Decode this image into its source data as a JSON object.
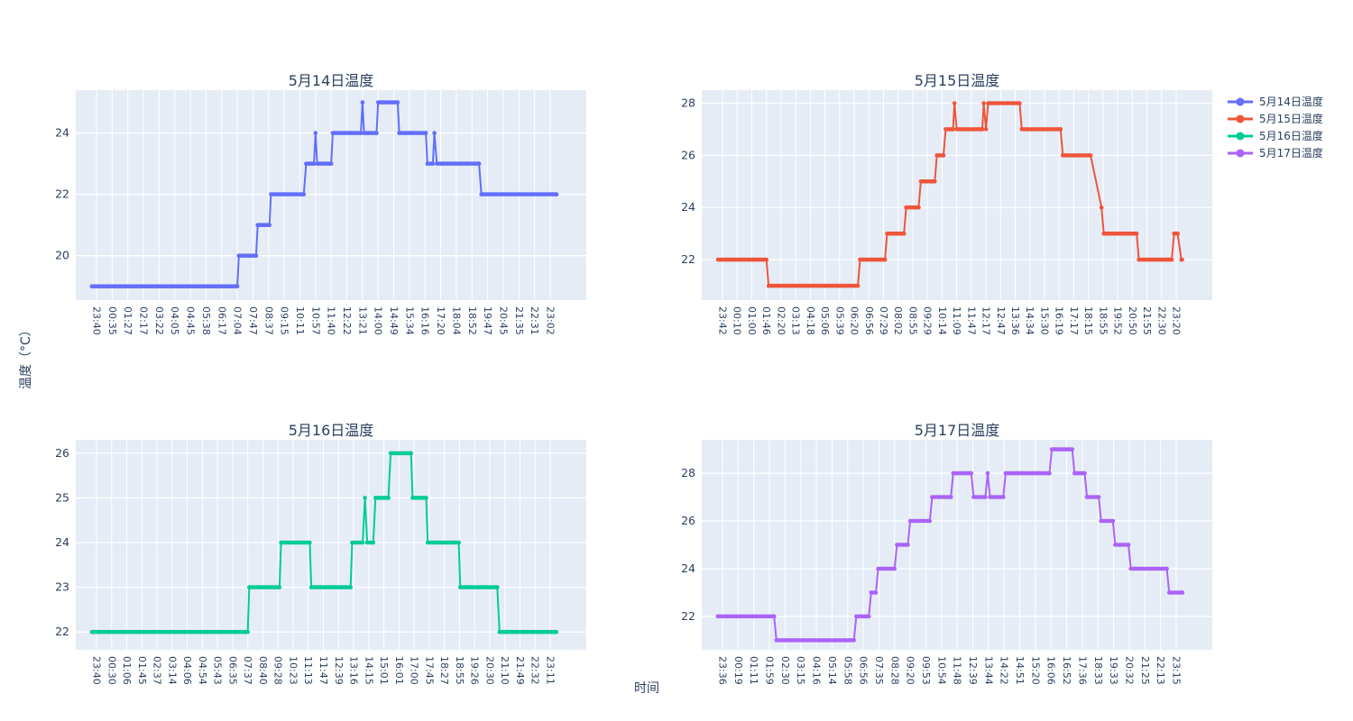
{
  "figure": {
    "y_axis_label": "温度（°C）",
    "x_axis_label": "时间",
    "background": "#ffffff",
    "plot_background": "#E5ECF6",
    "grid_color": "#ffffff",
    "text_color": "#2a3f5f"
  },
  "legend": {
    "position": "top-right",
    "items": [
      {
        "label": "5月14日温度",
        "color": "#636EFA"
      },
      {
        "label": "5月15日温度",
        "color": "#EF553B"
      },
      {
        "label": "5月16日温度",
        "color": "#00CC96"
      },
      {
        "label": "5月17日温度",
        "color": "#AB63FA"
      }
    ]
  },
  "chart_data": [
    {
      "type": "line",
      "mode": "lines+markers",
      "title": "5月14日温度",
      "series_name": "5月14日温度",
      "color": "#636EFA",
      "x_unit": "HH:MM",
      "y_unit": "°C",
      "x_tick_labels": [
        "23:40",
        "00:35",
        "01:27",
        "02:17",
        "03:22",
        "04:05",
        "04:45",
        "05:38",
        "06:17",
        "07:04",
        "07:47",
        "08:37",
        "09:15",
        "10:11",
        "10:57",
        "11:40",
        "12:22",
        "13:21",
        "14:00",
        "14:49",
        "15:34",
        "16:16",
        "17:20",
        "18:04",
        "18:52",
        "19:47",
        "20:45",
        "21:35",
        "22:31",
        "23:02"
      ],
      "y_ticks": [
        20,
        22,
        24
      ],
      "ylim": [
        18.55,
        25.4
      ],
      "steps": [
        {
          "value": 19,
          "from": -0.3,
          "to": 9.0
        },
        {
          "value": 20,
          "from": 9.1,
          "to": 10.2
        },
        {
          "value": 21,
          "from": 10.3,
          "to": 11.05
        },
        {
          "value": 22,
          "from": 11.15,
          "to": 13.25
        },
        {
          "value": 23,
          "from": 13.4,
          "to": 13.9
        },
        {
          "value": 24,
          "from": 14.0,
          "to": 14.0
        },
        {
          "value": 23,
          "from": 14.1,
          "to": 15.0
        },
        {
          "value": 24,
          "from": 15.1,
          "to": 16.9
        },
        {
          "value": 25,
          "from": 17.0,
          "to": 17.0
        },
        {
          "value": 24,
          "from": 17.1,
          "to": 17.9
        },
        {
          "value": 25,
          "from": 18.0,
          "to": 19.25
        },
        {
          "value": 24,
          "from": 19.35,
          "to": 21.05
        },
        {
          "value": 23,
          "from": 21.15,
          "to": 21.5
        },
        {
          "value": 24,
          "from": 21.6,
          "to": 21.6
        },
        {
          "value": 23,
          "from": 21.75,
          "to": 24.45
        },
        {
          "value": 22,
          "from": 24.6,
          "to": 29.4
        }
      ]
    },
    {
      "type": "line",
      "mode": "lines+markers",
      "title": "5月15日温度",
      "series_name": "5月15日温度",
      "color": "#EF553B",
      "x_unit": "HH:MM",
      "y_unit": "°C",
      "x_tick_labels": [
        "23:42",
        "00:10",
        "01:00",
        "01:46",
        "02:20",
        "03:13",
        "04:18",
        "05:06",
        "05:39",
        "06:20",
        "06:56",
        "07:29",
        "08:02",
        "08:55",
        "09:29",
        "10:14",
        "11:09",
        "11:47",
        "12:17",
        "12:47",
        "13:36",
        "14:34",
        "15:30",
        "16:19",
        "17:17",
        "18:15",
        "18:55",
        "19:52",
        "20:50",
        "21:55",
        "22:30",
        "23:20"
      ],
      "y_ticks": [
        22,
        24,
        26,
        28
      ],
      "ylim": [
        20.45,
        28.5
      ],
      "steps": [
        {
          "value": 22,
          "from": -0.3,
          "to": 3.0
        },
        {
          "value": 21,
          "from": 3.15,
          "to": 9.25
        },
        {
          "value": 22,
          "from": 9.4,
          "to": 11.1
        },
        {
          "value": 23,
          "from": 11.25,
          "to": 12.4
        },
        {
          "value": 24,
          "from": 12.55,
          "to": 13.4
        },
        {
          "value": 25,
          "from": 13.55,
          "to": 14.5
        },
        {
          "value": 26,
          "from": 14.65,
          "to": 15.1
        },
        {
          "value": 27,
          "from": 15.25,
          "to": 15.75
        },
        {
          "value": 28,
          "from": 15.85,
          "to": 15.85
        },
        {
          "value": 27,
          "from": 16.0,
          "to": 17.75
        },
        {
          "value": 28,
          "from": 17.85,
          "to": 17.85
        },
        {
          "value": 27,
          "from": 18.0,
          "to": 18.0
        },
        {
          "value": 28,
          "from": 18.15,
          "to": 20.3
        },
        {
          "value": 27,
          "from": 20.45,
          "to": 23.1
        },
        {
          "value": 26,
          "from": 23.25,
          "to": 25.15
        },
        {
          "value": 24,
          "from": 25.9,
          "to": 25.9
        },
        {
          "value": 23,
          "from": 26.05,
          "to": 28.3
        },
        {
          "value": 22,
          "from": 28.45,
          "to": 30.7
        },
        {
          "value": 23,
          "from": 30.85,
          "to": 31.1
        },
        {
          "value": 22,
          "from": 31.35,
          "to": 31.4
        }
      ]
    },
    {
      "type": "line",
      "mode": "lines+markers",
      "title": "5月16日温度",
      "series_name": "5月16日温度",
      "color": "#00CC96",
      "x_unit": "HH:MM",
      "y_unit": "°C",
      "x_tick_labels": [
        "23:40",
        "00:30",
        "01:06",
        "01:45",
        "02:37",
        "03:14",
        "04:06",
        "04:54",
        "05:43",
        "06:35",
        "07:37",
        "08:40",
        "09:28",
        "10:23",
        "11:13",
        "11:47",
        "12:39",
        "13:16",
        "14:15",
        "15:01",
        "16:01",
        "17:00",
        "17:45",
        "18:27",
        "18:55",
        "19:26",
        "20:30",
        "21:10",
        "21:49",
        "22:32",
        "23:11"
      ],
      "y_ticks": [
        22,
        23,
        24,
        25,
        26
      ],
      "ylim": [
        21.6,
        26.3
      ],
      "steps": [
        {
          "value": 22,
          "from": -0.3,
          "to": 10.0
        },
        {
          "value": 23,
          "from": 10.1,
          "to": 12.1
        },
        {
          "value": 24,
          "from": 12.2,
          "to": 14.1
        },
        {
          "value": 23,
          "from": 14.2,
          "to": 16.8
        },
        {
          "value": 24,
          "from": 16.9,
          "to": 17.6
        },
        {
          "value": 25,
          "from": 17.75,
          "to": 17.75
        },
        {
          "value": 24,
          "from": 17.9,
          "to": 18.3
        },
        {
          "value": 25,
          "from": 18.45,
          "to": 19.3
        },
        {
          "value": 26,
          "from": 19.45,
          "to": 20.8
        },
        {
          "value": 25,
          "from": 20.9,
          "to": 21.8
        },
        {
          "value": 24,
          "from": 21.9,
          "to": 23.95
        },
        {
          "value": 23,
          "from": 24.05,
          "to": 26.5
        },
        {
          "value": 22,
          "from": 26.65,
          "to": 30.4
        }
      ]
    },
    {
      "type": "line",
      "mode": "lines+markers",
      "title": "5月17日温度",
      "series_name": "5月17日温度",
      "color": "#AB63FA",
      "x_unit": "HH:MM",
      "y_unit": "°C",
      "x_tick_labels": [
        "23:36",
        "00:19",
        "01:11",
        "01:59",
        "02:30",
        "03:15",
        "04:16",
        "05:14",
        "05:58",
        "06:56",
        "07:35",
        "08:28",
        "09:20",
        "09:53",
        "10:54",
        "11:48",
        "12:39",
        "13:44",
        "14:22",
        "14:51",
        "15:20",
        "16:06",
        "16:52",
        "17:36",
        "18:33",
        "19:33",
        "20:32",
        "21:25",
        "22:13",
        "23:15"
      ],
      "y_ticks": [
        22,
        24,
        26,
        28
      ],
      "ylim": [
        20.6,
        29.4
      ],
      "steps": [
        {
          "value": 22,
          "from": -0.3,
          "to": 3.3
        },
        {
          "value": 21,
          "from": 3.45,
          "to": 8.4
        },
        {
          "value": 22,
          "from": 8.55,
          "to": 9.35
        },
        {
          "value": 23,
          "from": 9.5,
          "to": 9.8
        },
        {
          "value": 24,
          "from": 9.95,
          "to": 11.0
        },
        {
          "value": 25,
          "from": 11.15,
          "to": 11.85
        },
        {
          "value": 26,
          "from": 12.0,
          "to": 13.25
        },
        {
          "value": 27,
          "from": 13.4,
          "to": 14.6
        },
        {
          "value": 28,
          "from": 14.75,
          "to": 15.9
        },
        {
          "value": 27,
          "from": 16.05,
          "to": 16.8
        },
        {
          "value": 28,
          "from": 16.95,
          "to": 16.95
        },
        {
          "value": 27,
          "from": 17.1,
          "to": 17.95
        },
        {
          "value": 28,
          "from": 18.1,
          "to": 20.9
        },
        {
          "value": 29,
          "from": 21.05,
          "to": 22.35
        },
        {
          "value": 28,
          "from": 22.5,
          "to": 23.15
        },
        {
          "value": 27,
          "from": 23.3,
          "to": 24.05
        },
        {
          "value": 26,
          "from": 24.2,
          "to": 24.95
        },
        {
          "value": 25,
          "from": 25.1,
          "to": 25.95
        },
        {
          "value": 24,
          "from": 26.1,
          "to": 28.4
        },
        {
          "value": 23,
          "from": 28.55,
          "to": 29.4
        }
      ]
    }
  ]
}
